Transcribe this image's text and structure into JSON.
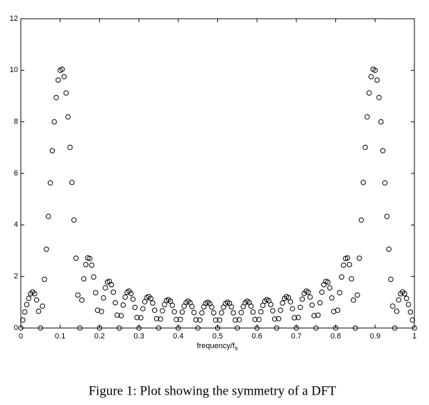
{
  "chart_data": {
    "type": "scatter",
    "caption": "Figure 1: Plot showing the symmetry of a DFT",
    "xlabel": "frequency/f",
    "xlabel_subscript": "s",
    "color": "#000000",
    "marker": "open-circle",
    "xlim": [
      0,
      1
    ],
    "ylim": [
      0,
      12
    ],
    "xticks": [
      0,
      0.1,
      0.2,
      0.3,
      0.4,
      0.5,
      0.6,
      0.7,
      0.8,
      0.9,
      1
    ],
    "yticks": [
      0,
      2,
      4,
      6,
      8,
      10,
      12
    ],
    "grid": false,
    "x": [
      0,
      0.005,
      0.01,
      0.015,
      0.02,
      0.025,
      0.03,
      0.035,
      0.04,
      0.045,
      0.05,
      0.055,
      0.06,
      0.065,
      0.07,
      0.075,
      0.08,
      0.085,
      0.09,
      0.095,
      0.1,
      0.105,
      0.11,
      0.115,
      0.12,
      0.125,
      0.13,
      0.135,
      0.14,
      0.145,
      0.15,
      0.155,
      0.16,
      0.165,
      0.17,
      0.175,
      0.18,
      0.185,
      0.19,
      0.195,
      0.2,
      0.205,
      0.21,
      0.215,
      0.22,
      0.225,
      0.23,
      0.235,
      0.24,
      0.245,
      0.25,
      0.255,
      0.26,
      0.265,
      0.27,
      0.275,
      0.28,
      0.285,
      0.29,
      0.295,
      0.3,
      0.305,
      0.31,
      0.315,
      0.32,
      0.325,
      0.33,
      0.335,
      0.34,
      0.345,
      0.35,
      0.355,
      0.36,
      0.365,
      0.37,
      0.375,
      0.38,
      0.385,
      0.39,
      0.395,
      0.4,
      0.405,
      0.41,
      0.415,
      0.42,
      0.425,
      0.43,
      0.435,
      0.44,
      0.445,
      0.45,
      0.455,
      0.46,
      0.465,
      0.47,
      0.475,
      0.48,
      0.485,
      0.49,
      0.495,
      0.5,
      0.505,
      0.51,
      0.515,
      0.52,
      0.525,
      0.53,
      0.535,
      0.54,
      0.545,
      0.55,
      0.555,
      0.56,
      0.565,
      0.57,
      0.575,
      0.58,
      0.585,
      0.59,
      0.595,
      0.6,
      0.605,
      0.61,
      0.615,
      0.62,
      0.625,
      0.63,
      0.635,
      0.64,
      0.645,
      0.65,
      0.655,
      0.66,
      0.665,
      0.67,
      0.675,
      0.68,
      0.685,
      0.69,
      0.695,
      0.7,
      0.705,
      0.71,
      0.715,
      0.72,
      0.725,
      0.73,
      0.735,
      0.74,
      0.745,
      0.75,
      0.755,
      0.76,
      0.765,
      0.77,
      0.775,
      0.78,
      0.785,
      0.79,
      0.795,
      0.8,
      0.805,
      0.81,
      0.815,
      0.82,
      0.825,
      0.83,
      0.835,
      0.84,
      0.845,
      0.85,
      0.855,
      0.86,
      0.865,
      0.87,
      0.875,
      0.88,
      0.885,
      0.89,
      0.895,
      0.9,
      0.905,
      0.91,
      0.915,
      0.92,
      0.925,
      0.93,
      0.935,
      0.94,
      0.945,
      0.95,
      0.955,
      0.96,
      0.965,
      0.97,
      0.975,
      0.98,
      0.985,
      0.99,
      0.995,
      1
    ],
    "values": [
      0,
      0.31,
      0.62,
      0.91,
      1.15,
      1.33,
      1.4,
      1.33,
      1.09,
      0.65,
      0,
      0.85,
      1.89,
      3.06,
      4.33,
      5.63,
      6.88,
      8.0,
      8.94,
      9.62,
      10,
      10.04,
      9.75,
      9.12,
      8.19,
      7.01,
      5.65,
      4.19,
      2.71,
      1.28,
      0,
      1.08,
      1.91,
      2.46,
      2.72,
      2.7,
      2.44,
      1.98,
      1.37,
      0.69,
      0,
      0.64,
      1.17,
      1.56,
      1.78,
      1.81,
      1.68,
      1.39,
      0.98,
      0.5,
      0,
      0.48,
      0.89,
      1.2,
      1.39,
      1.43,
      1.34,
      1.12,
      0.8,
      0.41,
      0,
      0.4,
      0.75,
      1.02,
      1.18,
      1.22,
      1.15,
      0.97,
      0.69,
      0.36,
      0,
      0.35,
      0.67,
      0.91,
      1.06,
      1.1,
      1.04,
      0.88,
      0.63,
      0.33,
      0,
      0.33,
      0.62,
      0.85,
      0.99,
      1.04,
      0.98,
      0.83,
      0.6,
      0.32,
      0,
      0.31,
      0.59,
      0.82,
      0.96,
      1.0,
      0.95,
      0.81,
      0.59,
      0.31,
      0,
      0.31,
      0.59,
      0.81,
      0.95,
      1.0,
      0.96,
      0.82,
      0.59,
      0.31,
      0,
      0.32,
      0.6,
      0.83,
      0.98,
      1.04,
      0.99,
      0.85,
      0.62,
      0.33,
      0,
      0.33,
      0.63,
      0.88,
      1.04,
      1.1,
      1.06,
      0.91,
      0.67,
      0.35,
      0,
      0.36,
      0.69,
      0.97,
      1.15,
      1.22,
      1.18,
      1.02,
      0.75,
      0.4,
      0,
      0.41,
      0.8,
      1.12,
      1.34,
      1.43,
      1.39,
      1.2,
      0.89,
      0.48,
      0,
      0.5,
      0.98,
      1.39,
      1.68,
      1.81,
      1.78,
      1.56,
      1.17,
      0.64,
      0,
      0.69,
      1.37,
      1.98,
      2.44,
      2.7,
      2.72,
      2.46,
      1.91,
      1.08,
      0,
      1.28,
      2.71,
      4.19,
      5.65,
      7.01,
      8.19,
      9.12,
      9.75,
      10.04,
      10,
      9.62,
      8.94,
      8.0,
      6.88,
      5.63,
      4.33,
      3.06,
      1.89,
      0.85,
      0,
      0.65,
      1.09,
      1.33,
      1.4,
      1.33,
      1.15,
      0.91,
      0.62,
      0.31,
      0
    ]
  }
}
